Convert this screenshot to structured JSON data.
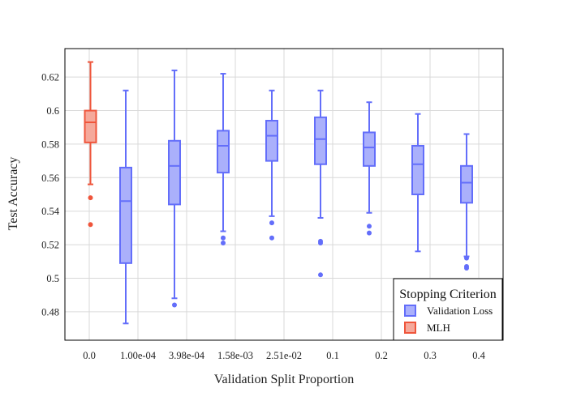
{
  "chart_data": {
    "type": "box",
    "title": "",
    "xlabel": "Validation Split Proportion",
    "ylabel": "Test Accuracy",
    "ylim": [
      0.463,
      0.637
    ],
    "y_ticks": [
      0.48,
      0.5,
      0.52,
      0.54,
      0.56,
      0.58,
      0.6,
      0.62
    ],
    "y_tick_labels": [
      "0.48",
      "0.5",
      "0.52",
      "0.54",
      "0.56",
      "0.58",
      "0.6",
      "0.62"
    ],
    "categories": [
      "0.0",
      "1.00e-04",
      "3.98e-04",
      "1.58e-03",
      "2.51e-02",
      "0.1",
      "0.2",
      "0.3",
      "0.4"
    ],
    "colors": {
      "Validation Loss": {
        "line": "#636efa",
        "fill": "#aab0fb"
      },
      "MLH": {
        "line": "#ef553b",
        "fill": "#f5a99b"
      },
      "grid": "#d9d9d9",
      "frame": "#000000"
    },
    "legend": {
      "title": "Stopping Criterion",
      "position": "bottom-right",
      "entries": [
        "Validation Loss",
        "MLH"
      ]
    },
    "series": [
      {
        "name": "MLH",
        "boxes": [
          {
            "category": "0.0",
            "lower_whisker": 0.556,
            "q1": 0.581,
            "median": 0.593,
            "q3": 0.6,
            "upper_whisker": 0.629,
            "outliers": [
              0.548,
              0.532
            ]
          }
        ]
      },
      {
        "name": "Validation Loss",
        "boxes": [
          {
            "category": "1.00e-04",
            "lower_whisker": 0.473,
            "q1": 0.509,
            "median": 0.546,
            "q3": 0.566,
            "upper_whisker": 0.612,
            "outliers": []
          },
          {
            "category": "3.98e-04",
            "lower_whisker": 0.488,
            "q1": 0.544,
            "median": 0.567,
            "q3": 0.582,
            "upper_whisker": 0.624,
            "outliers": [
              0.484
            ]
          },
          {
            "category": "1.58e-03",
            "lower_whisker": 0.528,
            "q1": 0.563,
            "median": 0.579,
            "q3": 0.588,
            "upper_whisker": 0.622,
            "outliers": [
              0.524,
              0.521
            ]
          },
          {
            "category": "2.51e-02",
            "lower_whisker": 0.537,
            "q1": 0.57,
            "median": 0.585,
            "q3": 0.594,
            "upper_whisker": 0.612,
            "outliers": [
              0.533,
              0.524
            ]
          },
          {
            "category": "0.1",
            "lower_whisker": 0.536,
            "q1": 0.568,
            "median": 0.583,
            "q3": 0.596,
            "upper_whisker": 0.612,
            "outliers": [
              0.522,
              0.521,
              0.502
            ]
          },
          {
            "category": "0.2",
            "lower_whisker": 0.539,
            "q1": 0.567,
            "median": 0.578,
            "q3": 0.587,
            "upper_whisker": 0.605,
            "outliers": [
              0.531,
              0.527
            ]
          },
          {
            "category": "0.3",
            "lower_whisker": 0.516,
            "q1": 0.55,
            "median": 0.568,
            "q3": 0.579,
            "upper_whisker": 0.598,
            "outliers": []
          },
          {
            "category": "0.4",
            "lower_whisker": 0.513,
            "q1": 0.545,
            "median": 0.557,
            "q3": 0.567,
            "upper_whisker": 0.586,
            "outliers": [
              0.512,
              0.507,
              0.506
            ]
          }
        ]
      }
    ]
  }
}
